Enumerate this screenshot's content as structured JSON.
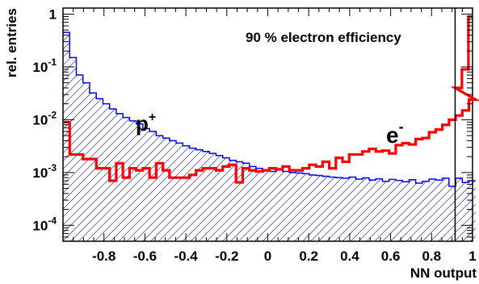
{
  "chart_data": {
    "type": "histogram",
    "xlabel": "NN output",
    "ylabel": "rel. entries",
    "xlim": [
      -1,
      1
    ],
    "ylim": [
      5e-05,
      1.3
    ],
    "log_y": true,
    "x_ticks": [
      {
        "value": -0.8,
        "label": "-0.8"
      },
      {
        "value": -0.6,
        "label": "-0.6"
      },
      {
        "value": -0.4,
        "label": "-0.4"
      },
      {
        "value": -0.2,
        "label": "-0.2"
      },
      {
        "value": 0,
        "label": "0"
      },
      {
        "value": 0.2,
        "label": "0.2"
      },
      {
        "value": 0.4,
        "label": "0.4"
      },
      {
        "value": 0.6,
        "label": "0.6"
      },
      {
        "value": 0.8,
        "label": "0.8"
      },
      {
        "value": 1,
        "label": "1"
      }
    ],
    "y_ticks": [
      {
        "value": 1,
        "base": "1",
        "exp": ""
      },
      {
        "value": 0.1,
        "base": "10",
        "exp": "-1"
      },
      {
        "value": 0.01,
        "base": "10",
        "exp": "-2"
      },
      {
        "value": 0.001,
        "base": "10",
        "exp": "-3"
      },
      {
        "value": 0.0001,
        "base": "10",
        "exp": "-4"
      }
    ],
    "bins": {
      "start": -1,
      "width": 0.0325,
      "count": 62
    },
    "series": [
      {
        "name": "p+",
        "label_base": "p",
        "label_sup": "+",
        "color": "#0000ff",
        "fill": "hatched",
        "values": [
          0.45,
          0.15,
          0.07,
          0.05,
          0.032,
          0.025,
          0.02,
          0.016,
          0.013,
          0.011,
          0.0095,
          0.0083,
          0.0068,
          0.006,
          0.005,
          0.0045,
          0.004,
          0.0036,
          0.0032,
          0.0029,
          0.0027,
          0.0025,
          0.0023,
          0.0021,
          0.0019,
          0.0017,
          0.0016,
          0.0015,
          0.0013,
          0.0012,
          0.0011,
          0.00105,
          0.00115,
          0.00105,
          0.001,
          0.00098,
          0.00095,
          0.0009,
          0.00088,
          0.00085,
          0.00082,
          0.0008,
          0.00078,
          0.00082,
          0.00075,
          0.00079,
          0.00072,
          0.00076,
          0.00068,
          0.00074,
          0.00071,
          0.00067,
          0.00073,
          0.00063,
          0.00068,
          0.00075,
          0.00072,
          0.00078,
          0.00055,
          0.00078,
          0.00065,
          0.0007
        ]
      },
      {
        "name": "e-",
        "label_base": "e",
        "label_sup": "-",
        "color": "#ff0000",
        "fill": "none",
        "values": [
          0.009,
          0.0022,
          0.0022,
          0.0018,
          0.0018,
          0.0012,
          0.0012,
          0.0007,
          0.0015,
          0.0008,
          0.0012,
          0.0011,
          0.0012,
          0.0008,
          0.0015,
          0.0011,
          0.0008,
          0.0008,
          0.0008,
          0.0009,
          0.0011,
          0.0012,
          0.0012,
          0.0011,
          0.0013,
          0.0014,
          0.00065,
          0.0012,
          0.0011,
          0.00105,
          0.0011,
          0.0012,
          0.00115,
          0.0013,
          0.0011,
          0.0011,
          0.0012,
          0.0014,
          0.0013,
          0.0016,
          0.0012,
          0.0019,
          0.0016,
          0.0022,
          0.0022,
          0.0025,
          0.0028,
          0.0025,
          0.0026,
          0.0023,
          0.0033,
          0.0036,
          0.0034,
          0.0043,
          0.0045,
          0.0058,
          0.0065,
          0.008,
          0.01,
          0.012,
          0.015,
          0.024
        ]
      }
    ],
    "extra_bins": {
      "x": [
        0.915,
        0.948,
        0.98
      ],
      "values": [
        0.04,
        0.09,
        0.9
      ]
    },
    "cut_line": {
      "x": 0.915
    },
    "annotation": "90 % electron efficiency"
  }
}
